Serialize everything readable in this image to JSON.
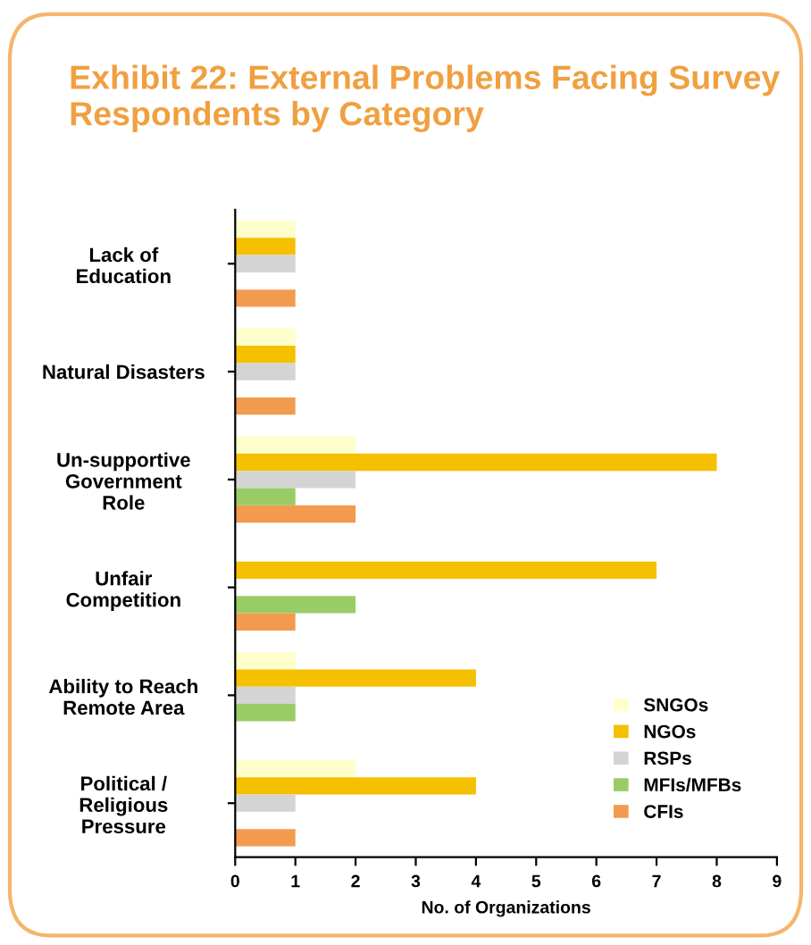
{
  "chart_data": {
    "type": "bar",
    "orientation": "horizontal",
    "title": "Exhibit 22: External Problems Facing Survey Respondents by Category",
    "xlabel": "No. of Organizations",
    "categories": [
      "Lack of\nEducation",
      "Natural Disasters",
      "Un-supportive\nGovernment\nRole",
      "Unfair\nCompetition",
      "Ability to Reach\nRemote Area",
      "Political /\nReligious\nPressure"
    ],
    "series": [
      {
        "name": "SNGOs",
        "color": "#ffffcc",
        "values": [
          1,
          1,
          2,
          0,
          1,
          2
        ]
      },
      {
        "name": "NGOs",
        "color": "#f5c000",
        "values": [
          1,
          1,
          8,
          7,
          4,
          4
        ]
      },
      {
        "name": "RSPs",
        "color": "#d4d4d4",
        "values": [
          1,
          1,
          2,
          0,
          1,
          1
        ]
      },
      {
        "name": "MFIs/MFBs",
        "color": "#99cc66",
        "values": [
          0,
          0,
          1,
          2,
          1,
          0
        ]
      },
      {
        "name": "CFIs",
        "color": "#f29b4f",
        "values": [
          1,
          1,
          2,
          1,
          0,
          1
        ]
      }
    ],
    "xlim": [
      0,
      9
    ],
    "xticks": [
      0,
      1,
      2,
      3,
      4,
      5,
      6,
      7,
      8,
      9
    ],
    "grid": false,
    "legend": "lower right"
  }
}
